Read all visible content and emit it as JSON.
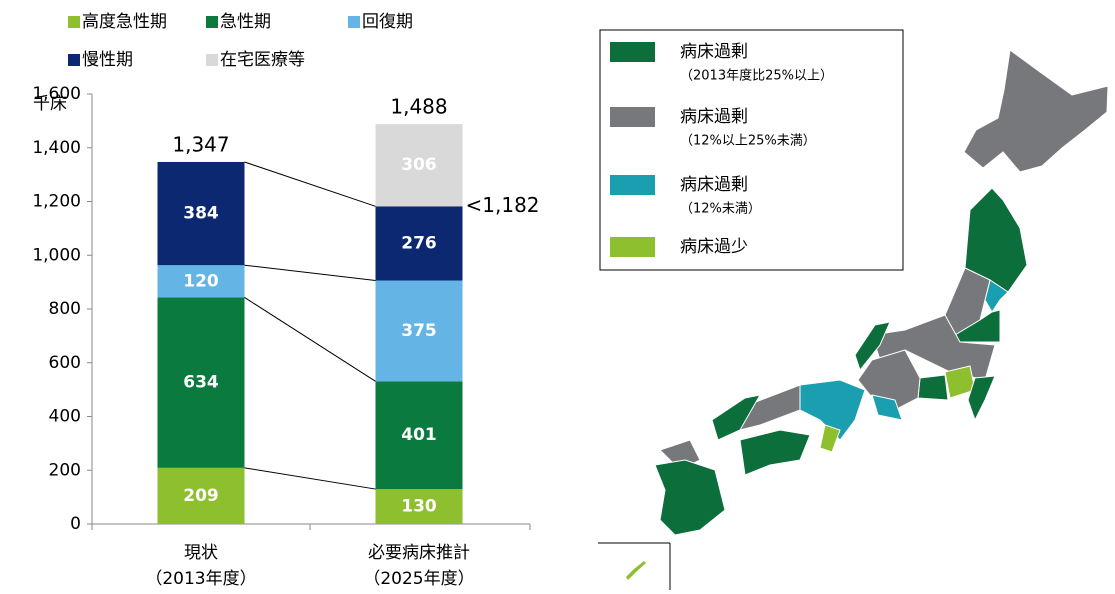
{
  "chart_data": {
    "type": "stacked_bar",
    "y_unit": "千床",
    "categories": [
      "現状",
      "必要病床推計"
    ],
    "category_notes": [
      "（2013年度）",
      "（2025年度）"
    ],
    "series": [
      {
        "name": "高度急性期",
        "color": "#8dbf2e",
        "values": [
          209,
          130
        ]
      },
      {
        "name": "急性期",
        "color": "#0b7a3e",
        "values": [
          634,
          401
        ]
      },
      {
        "name": "回復期",
        "color": "#64b5e6",
        "values": [
          120,
          375
        ]
      },
      {
        "name": "慢性期",
        "color": "#0c2870",
        "values": [
          384,
          276
        ]
      },
      {
        "name": "在宅医療等",
        "color": "#d9d9d9",
        "values": [
          null,
          306
        ]
      }
    ],
    "totals": {
      "values": [
        1347,
        1488
      ],
      "value_labels": [
        "1,347",
        "1,488"
      ],
      "colors": [
        "#000000",
        "#999999"
      ]
    },
    "subtotal": {
      "category": 1,
      "value": 1182,
      "label": "<1,182"
    },
    "ylim": [
      0,
      1600
    ],
    "yticks": [
      0,
      200,
      400,
      600,
      800,
      {
        "value": 1000,
        "label": "1,000"
      },
      {
        "value": 1200,
        "label": "1,200"
      },
      {
        "value": 1400,
        "label": "1,400"
      },
      {
        "value": 1600,
        "label": "1,600"
      }
    ],
    "map_legend": [
      {
        "label": "病床過剰",
        "note": "（2013年度比25%以上）",
        "color": "#0b6e3b"
      },
      {
        "label": "病床過剰",
        "note": "（12%以上25%未満）",
        "color": "#77787b"
      },
      {
        "label": "病床過剰",
        "note": "（12%未満）",
        "color": "#1a9fb0"
      },
      {
        "label": "病床過少",
        "color": "#8dbf2e"
      }
    ]
  }
}
